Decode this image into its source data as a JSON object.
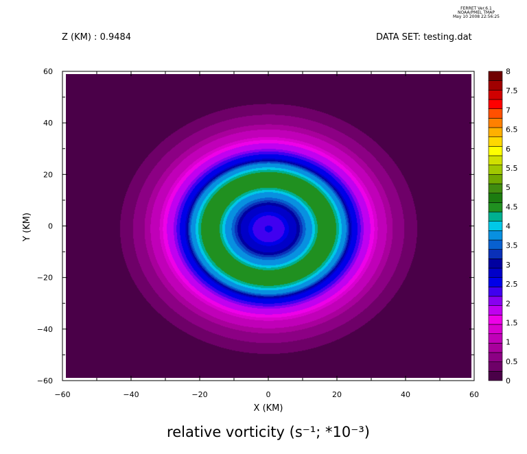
{
  "header": {
    "program": "FERRET Ver.6.1",
    "org": "NOAA/PMEL TMAP",
    "date": "May 10 2008 22:56:25",
    "z_label": "Z (KM) : 0.9484",
    "dataset_label": "DATA SET: testing.dat"
  },
  "chart_data": {
    "type": "heatmap",
    "title": "relative vorticity (s⁻¹; *10⁻³)",
    "xlabel": "X (KM)",
    "ylabel": "Y (KM)",
    "xlim": [
      -60,
      60
    ],
    "ylim": [
      -60,
      60
    ],
    "xticks": [
      -60,
      -40,
      -20,
      0,
      20,
      40,
      60
    ],
    "yticks": [
      -60,
      -40,
      -20,
      0,
      20,
      40,
      60
    ],
    "xtick_labels": [
      "−60",
      "−40",
      "−20",
      "0",
      "20",
      "40",
      "60"
    ],
    "ytick_labels": [
      "−60",
      "−40",
      "−20",
      "0",
      "20",
      "40",
      "60"
    ],
    "levels": [
      0,
      0.25,
      0.5,
      0.75,
      1,
      1.25,
      1.5,
      1.75,
      2,
      2.25,
      2.5,
      2.75,
      3,
      3.25,
      3.5,
      3.75,
      4,
      4.25,
      4.5,
      4.75,
      5,
      5.25,
      5.5,
      5.75,
      6,
      6.25,
      6.5,
      6.75,
      7,
      7.25,
      7.5,
      7.75,
      8
    ],
    "colorbar_labels": [
      "0",
      "0.5",
      "1",
      "1.5",
      "2",
      "2.5",
      "3",
      "3.5",
      "4",
      "4.5",
      "5",
      "5.5",
      "6",
      "6.5",
      "7",
      "7.5",
      "8"
    ],
    "colors": [
      "#4a0048",
      "#6e0068",
      "#8c0084",
      "#a8009c",
      "#c000b8",
      "#d800d0",
      "#ee00e8",
      "#c000f0",
      "#8800f0",
      "#4000f0",
      "#0000e8",
      "#0000c8",
      "#0000a0",
      "#0a30b8",
      "#0860d0",
      "#0890e0",
      "#00c8e8",
      "#00b090",
      "#209020",
      "#1c7c10",
      "#408c10",
      "#70a800",
      "#a0c800",
      "#d0e000",
      "#ffff00",
      "#ffd800",
      "#ffb000",
      "#ff8000",
      "#ff5000",
      "#ff0000",
      "#d00000",
      "#a00000",
      "#700000"
    ],
    "field": {
      "center": [
        0,
        -1
      ],
      "rings": [
        {
          "r": 0,
          "value": 2.6
        },
        {
          "r": 3,
          "value": 2.3
        },
        {
          "r": 7,
          "value": 2.85
        },
        {
          "r": 12,
          "value": 3.9
        },
        {
          "r": 15,
          "value": 4.6
        },
        {
          "r": 19,
          "value": 4.6
        },
        {
          "r": 22,
          "value": 3.9
        },
        {
          "r": 25,
          "value": 2.6
        },
        {
          "r": 29,
          "value": 1.8
        },
        {
          "r": 33,
          "value": 1.1
        },
        {
          "r": 38,
          "value": 0.6
        },
        {
          "r": 42,
          "value": 0.3
        },
        {
          "r": 46,
          "value": 0.1
        },
        {
          "r": 52,
          "value": 0
        }
      ],
      "y_stretch": 1.12
    }
  }
}
